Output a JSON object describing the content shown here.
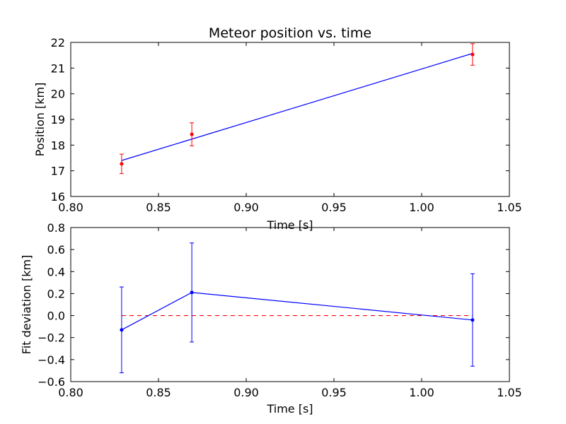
{
  "chart_data": [
    {
      "type": "scatter",
      "title": "Meteor position vs. time",
      "xlabel": "Time [s]",
      "ylabel": "Position [km]",
      "xlim": [
        0.8,
        1.05
      ],
      "ylim": [
        16,
        22
      ],
      "xticks": [
        "0.80",
        "0.85",
        "0.90",
        "0.95",
        "1.00",
        "1.05"
      ],
      "yticks": [
        "16",
        "17",
        "18",
        "19",
        "20",
        "21",
        "22"
      ],
      "grid": false,
      "points": {
        "x": [
          0.829,
          0.869,
          1.029
        ],
        "y": [
          17.27,
          18.42,
          21.53
        ],
        "yerr": [
          0.38,
          0.45,
          0.42
        ],
        "color": "#ff0000"
      },
      "fit_line": {
        "x": [
          0.829,
          1.029
        ],
        "y": [
          17.4,
          21.57
        ],
        "color": "#0000ff"
      }
    },
    {
      "type": "line",
      "title": "",
      "xlabel": "Time [s]",
      "ylabel": "Fit deviation [km]",
      "xlim": [
        0.8,
        1.05
      ],
      "ylim": [
        -0.6,
        0.8
      ],
      "xticks": [
        "0.80",
        "0.85",
        "0.90",
        "0.95",
        "1.00",
        "1.05"
      ],
      "yticks": [
        "−0.6",
        "−0.4",
        "−0.2",
        "0.0",
        "0.2",
        "0.4",
        "0.6",
        "0.8"
      ],
      "grid": false,
      "series": {
        "x": [
          0.829,
          0.869,
          1.029
        ],
        "y": [
          -0.13,
          0.21,
          -0.04
        ],
        "yerr": [
          0.39,
          0.45,
          0.42
        ],
        "color": "#0000ff"
      },
      "zero_line": {
        "y": 0.0,
        "x": [
          0.829,
          1.029
        ],
        "color": "#ff0000",
        "style": "dashed"
      }
    }
  ]
}
